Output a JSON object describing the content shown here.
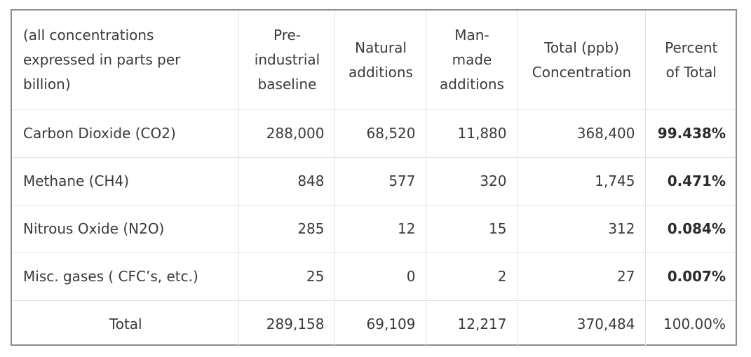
{
  "table": {
    "headers": [
      "(all concentrations expressed in parts per billion)",
      "Pre-industrial baseline",
      "Natural additions",
      "Man-made additions",
      "Total (ppb) Concentration",
      "Percent of Total"
    ],
    "rows": [
      {
        "gas": "Carbon Dioxide (CO2)",
        "baseline": "288,000",
        "natural": "68,520",
        "manmade": "11,880",
        "total": "368,400",
        "percent": "99.438%"
      },
      {
        "gas": "Methane (CH4)",
        "baseline": "848",
        "natural": "577",
        "manmade": "320",
        "total": "1,745",
        "percent": "0.471%"
      },
      {
        "gas": "Nitrous Oxide (N2O)",
        "baseline": "285",
        "natural": "12",
        "manmade": "15",
        "total": "312",
        "percent": "0.084%"
      },
      {
        "gas": "Misc. gases ( CFC’s, etc.)",
        "baseline": "25",
        "natural": "0",
        "manmade": "2",
        "total": "27",
        "percent": "0.007%"
      }
    ],
    "total_row": {
      "label": "Total",
      "baseline": "289,158",
      "natural": "69,109",
      "manmade": "12,217",
      "total": "370,484",
      "percent": "100.00%"
    }
  }
}
